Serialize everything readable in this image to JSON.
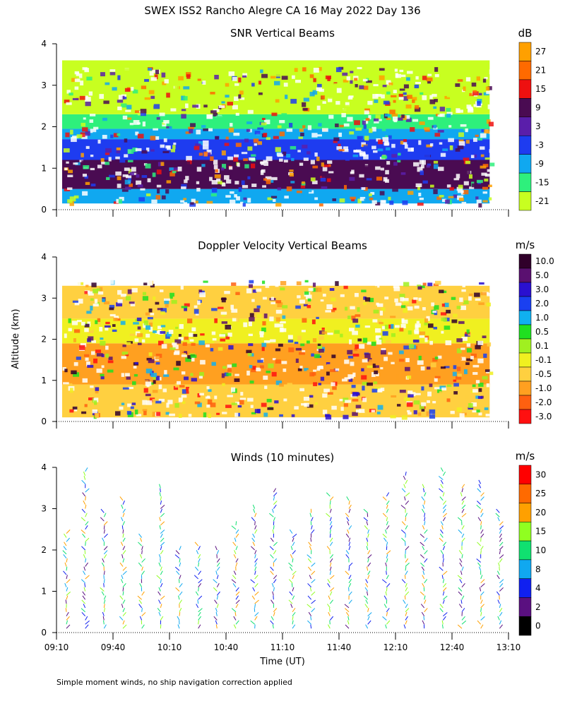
{
  "title": "SWEX ISS2 Rancho Alegre CA  16 May 2022 Day 136",
  "footnote": "Simple moment winds, no ship navigation correction applied",
  "shared_ylabel": "Altitude (km)",
  "xlabel": "Time (UT)",
  "chart_data": [
    {
      "type": "heatmap",
      "title": "SNR Vertical Beams",
      "x_range": [
        "09:10",
        "13:10"
      ],
      "y_range_km": [
        0,
        4
      ],
      "y_ticks": [
        "0",
        "1",
        "2",
        "3",
        "4"
      ],
      "colorbar": {
        "unit": "dB",
        "levels": [
          "27",
          "21",
          "15",
          "9",
          "3",
          "-3",
          "-9",
          "-15",
          "-21"
        ],
        "colors": [
          "#ffa000",
          "#ff6a00",
          "#ee1010",
          "#4a0b52",
          "#5a1eaa",
          "#1e3cf0",
          "#10a8f0",
          "#2ef07c",
          "#c8ff20"
        ]
      },
      "layers": [
        {
          "alt_km": [
            0.15,
            0.5
          ],
          "color": "#10a8f0"
        },
        {
          "alt_km": [
            0.5,
            1.2
          ],
          "color": "#4a0b52"
        },
        {
          "alt_km": [
            1.2,
            1.7
          ],
          "color": "#1e3cf0"
        },
        {
          "alt_km": [
            1.7,
            1.95
          ],
          "color": "#10a8f0"
        },
        {
          "alt_km": [
            1.95,
            2.3
          ],
          "color": "#2ef07c"
        },
        {
          "alt_km": [
            2.3,
            3.6
          ],
          "color": "#c8ff20"
        }
      ]
    },
    {
      "type": "heatmap",
      "title": "Doppler Velocity Vertical Beams",
      "x_range": [
        "09:10",
        "13:10"
      ],
      "y_range_km": [
        0,
        4
      ],
      "y_ticks": [
        "0",
        "1",
        "2",
        "3",
        "4"
      ],
      "colorbar": {
        "unit": "m/s",
        "levels": [
          "10.0",
          "5.0",
          "3.0",
          "2.0",
          "1.0",
          "0.5",
          "0.1",
          "-0.1",
          "-0.5",
          "-1.0",
          "-2.0",
          "-3.0"
        ],
        "colors": [
          "#30002a",
          "#5a1070",
          "#2a10d0",
          "#1a40f0",
          "#10b0f0",
          "#20e020",
          "#a0f020",
          "#f0f020",
          "#ffd040",
          "#ffa020",
          "#ff6010",
          "#ff1010"
        ]
      },
      "layers": [
        {
          "alt_km": [
            0.1,
            0.9
          ],
          "color": "#ffd040"
        },
        {
          "alt_km": [
            0.9,
            1.9
          ],
          "color": "#ffa020"
        },
        {
          "alt_km": [
            1.9,
            2.5
          ],
          "color": "#f0f020"
        },
        {
          "alt_km": [
            2.5,
            3.3
          ],
          "color": "#ffd040"
        }
      ]
    },
    {
      "type": "wind_barbs",
      "title": "Winds (10 minutes)",
      "x_range": [
        "09:10",
        "13:10"
      ],
      "y_range_km": [
        0,
        4
      ],
      "y_ticks": [
        "0",
        "1",
        "2",
        "3",
        "4"
      ],
      "x_ticks": [
        "09:10",
        "09:40",
        "10:10",
        "10:40",
        "11:10",
        "11:40",
        "12:10",
        "12:40",
        "13:10"
      ],
      "colorbar": {
        "unit": "m/s",
        "levels": [
          "30",
          "25",
          "20",
          "15",
          "10",
          "8",
          "4",
          "2",
          "0"
        ],
        "colors": [
          "#ff0000",
          "#ff6a00",
          "#ffa000",
          "#90ff20",
          "#10e070",
          "#10a8f0",
          "#1020f0",
          "#5a1080",
          "#000000"
        ]
      },
      "profile_interval_min": 10
    }
  ]
}
